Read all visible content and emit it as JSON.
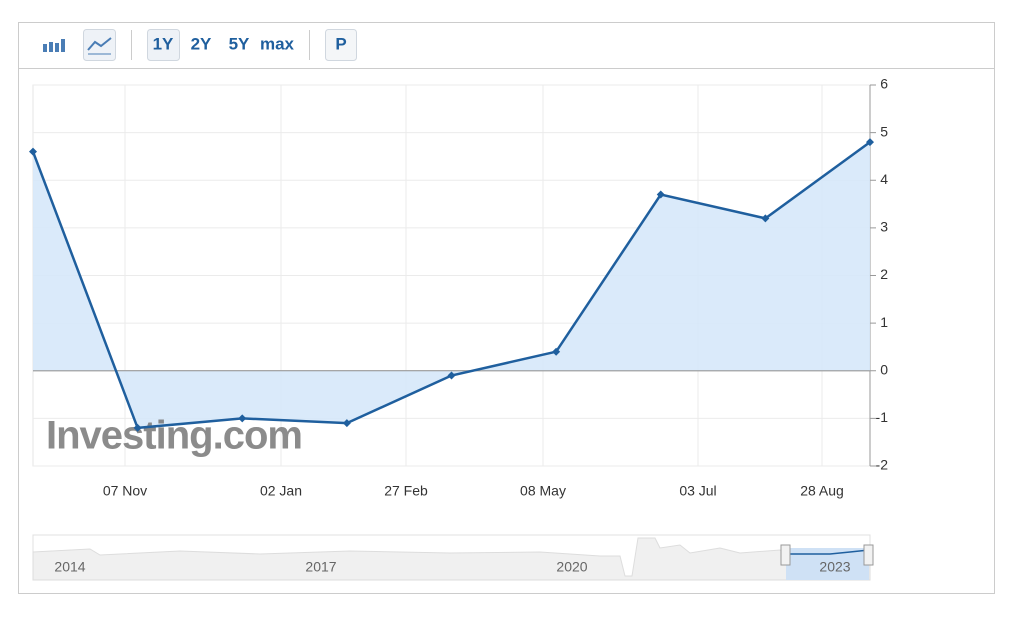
{
  "toolbar": {
    "ranges": [
      "1Y",
      "2Y",
      "5Y",
      "max"
    ],
    "p_button": "P"
  },
  "chart_data": {
    "type": "area",
    "categories": [
      null,
      null,
      null,
      null,
      null,
      null,
      null,
      null,
      null
    ],
    "x_labels": [
      "07 Nov",
      "02 Jan",
      "27 Feb",
      "08 May",
      "03 Jul",
      "28 Aug"
    ],
    "values": [
      4.6,
      -1.2,
      -1.0,
      -1.1,
      -0.1,
      0.4,
      3.7,
      3.2,
      4.8
    ],
    "color": "#1f5f9e",
    "fill": "#d6e8fa",
    "ylim": [
      -2,
      6
    ],
    "yticks": [
      -2,
      -1,
      0,
      1,
      2,
      3,
      4,
      5,
      6
    ],
    "grid": true,
    "watermark": "Investing.com",
    "navigator": {
      "labels": [
        "2014",
        "2017",
        "2020",
        "2023"
      ]
    }
  }
}
